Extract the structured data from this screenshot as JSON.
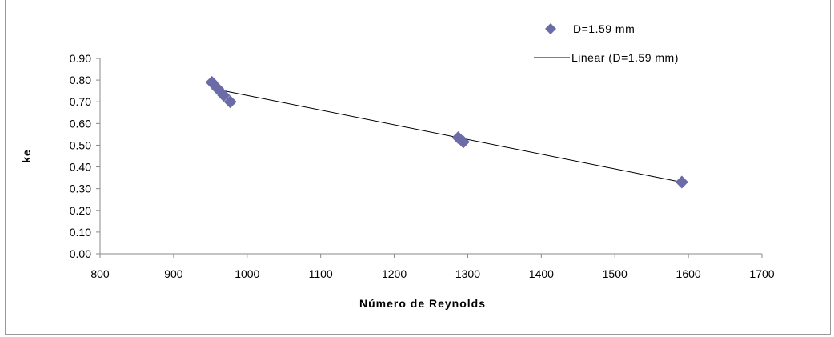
{
  "chart_data": {
    "type": "scatter",
    "xlabel": "Número de Reynolds",
    "ylabel": "ke",
    "xlim": [
      800,
      1700
    ],
    "ylim": [
      0.0,
      0.9
    ],
    "x_ticks": [
      "800",
      "900",
      "1000",
      "1100",
      "1200",
      "1300",
      "1400",
      "1500",
      "1600",
      "1700"
    ],
    "y_ticks": [
      "0.00",
      "0.10",
      "0.20",
      "0.30",
      "0.40",
      "0.50",
      "0.60",
      "0.70",
      "0.80",
      "0.90"
    ],
    "series": [
      {
        "name": "D=1.59 mm",
        "color": "#6b6ba8",
        "marker": "diamond",
        "points": [
          {
            "x": 952,
            "y": 0.79
          },
          {
            "x": 960,
            "y": 0.76
          },
          {
            "x": 968,
            "y": 0.73
          },
          {
            "x": 977,
            "y": 0.7
          },
          {
            "x": 1287,
            "y": 0.535
          },
          {
            "x": 1294,
            "y": 0.515
          },
          {
            "x": 1591,
            "y": 0.33
          }
        ]
      }
    ],
    "trendline": {
      "name": "Linear (D=1.59 mm)",
      "color": "#000000",
      "from": {
        "x": 955,
        "y": 0.76
      },
      "to": {
        "x": 1590,
        "y": 0.33
      }
    },
    "legend_position": "top-right",
    "grid": false
  }
}
